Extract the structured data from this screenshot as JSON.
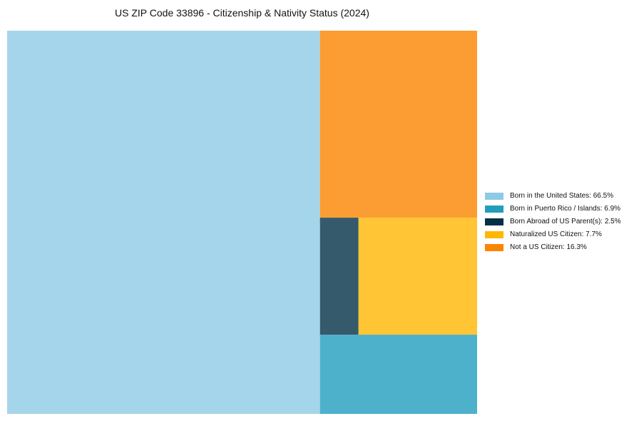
{
  "chart_data": {
    "type": "treemap",
    "title": "US ZIP Code 33896 - Citizenship & Nativity Status (2024)",
    "unit": "%",
    "series": [
      {
        "name": "Born in the United States",
        "value": 66.5,
        "legend_label": "Born in the United States: 66.5%",
        "legend_color": "#8ecae6",
        "tile_color": "#a5d5ea"
      },
      {
        "name": "Born in Puerto Rico / Islands",
        "value": 6.9,
        "legend_label": "Born in Puerto Rico / Islands: 6.9%",
        "legend_color": "#219ebc",
        "tile_color": "#4db1cb"
      },
      {
        "name": "Born Abroad of US Parent(s)",
        "value": 2.5,
        "legend_label": "Born Abroad of US Parent(s): 2.5%",
        "legend_color": "#023047",
        "tile_color": "#355a6c"
      },
      {
        "name": "Naturalized US Citizen",
        "value": 7.7,
        "legend_label": "Naturalized US Citizen: 7.7%",
        "legend_color": "#ffb703",
        "tile_color": "#ffc535"
      },
      {
        "name": "Not a US Citizen",
        "value": 16.3,
        "legend_label": "Not a US Citizen: 16.3%",
        "legend_color": "#fb8500",
        "tile_color": "#fc9d33"
      }
    ],
    "legend_position": "right"
  }
}
